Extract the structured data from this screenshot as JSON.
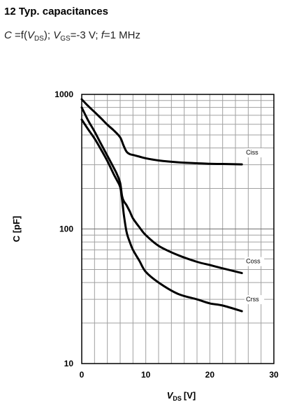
{
  "header": {
    "title": "12 Typ. capacitances",
    "subtitle": {
      "c": "C",
      "eq": " =f(",
      "v1": "V",
      "ds": "DS",
      "mid": "); ",
      "v2": "V",
      "gs": "GS",
      "gsval": "=-3 V; ",
      "f": "f",
      "fval": "=1 MHz"
    }
  },
  "chart_data": {
    "type": "line",
    "title": "12 Typ. capacitances",
    "xlabel": "V_DS [V]",
    "xlabel_main": "V",
    "xlabel_sub": "DS",
    "xlabel_unit": "[V]",
    "ylabel": "C [pF]",
    "xlim": [
      0,
      30
    ],
    "ylim": [
      10,
      1000
    ],
    "yscale": "log",
    "grid": true,
    "legend": "inline labels",
    "x_ticks": [
      "0",
      "10",
      "20",
      "30"
    ],
    "y_ticks": [
      "10",
      "100",
      "1000"
    ],
    "series": [
      {
        "name": "Ciss",
        "x": [
          0,
          1,
          2,
          3,
          4,
          5,
          6,
          6.5,
          7,
          7.5,
          8,
          9,
          10,
          12,
          15,
          18,
          20,
          22,
          25
        ],
        "y": [
          920,
          820,
          740,
          665,
          595,
          540,
          480,
          420,
          375,
          360,
          355,
          345,
          335,
          323,
          313,
          308,
          305,
          304,
          302
        ]
      },
      {
        "name": "Coss",
        "x": [
          0,
          1,
          2,
          3,
          4,
          5,
          5.5,
          6,
          6.3,
          6.6,
          7,
          7.5,
          8,
          9,
          10,
          12,
          15,
          18,
          20,
          22,
          25
        ],
        "y": [
          800,
          640,
          530,
          430,
          350,
          285,
          255,
          220,
          175,
          160,
          150,
          135,
          120,
          103,
          90,
          75,
          64,
          57,
          54,
          51,
          47
        ]
      },
      {
        "name": "Crss",
        "x": [
          0,
          1,
          2,
          3,
          4,
          5,
          5.5,
          6,
          6.3,
          6.6,
          7,
          7.5,
          8,
          9,
          10,
          12,
          15,
          18,
          20,
          22,
          25
        ],
        "y": [
          650,
          550,
          470,
          390,
          320,
          255,
          230,
          205,
          165,
          125,
          95,
          80,
          70,
          58,
          48,
          40,
          33,
          30,
          28,
          27,
          24.5
        ]
      }
    ]
  }
}
